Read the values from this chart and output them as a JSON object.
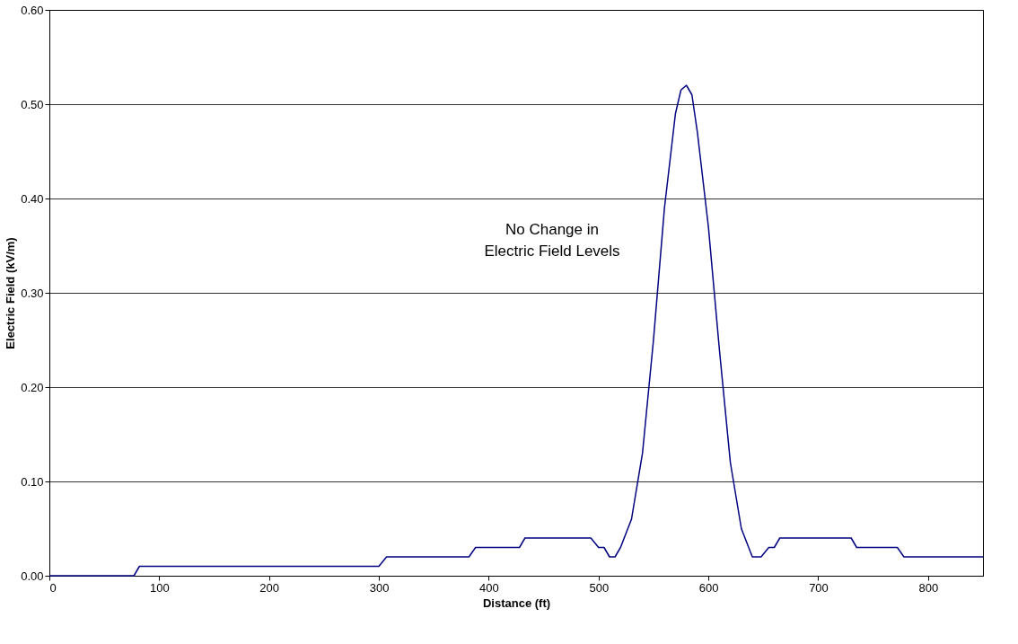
{
  "chart_data": {
    "type": "line",
    "xlabel": "Distance (ft)",
    "ylabel": "Electric Field (kV/m)",
    "xlim": [
      0,
      850
    ],
    "xticks": [
      0,
      100,
      200,
      300,
      400,
      500,
      600,
      700,
      800
    ],
    "ylim": [
      0,
      0.6
    ],
    "yticks": [
      {
        "value": 0,
        "label": "0.00"
      },
      {
        "value": 0.1,
        "label": "0.10"
      },
      {
        "value": 0.2,
        "label": "0.20"
      },
      {
        "value": 0.3,
        "label": "0.30"
      },
      {
        "value": 0.4,
        "label": "0.40"
      },
      {
        "value": 0.5,
        "label": "0.50"
      },
      {
        "value": 0.6,
        "label": "0.60"
      }
    ],
    "grid": "y",
    "legend": false,
    "marker": "none",
    "line_style": "solid",
    "annotations": [
      "No Change in\nElectric Field Levels"
    ],
    "series": [
      {
        "color": "#000080",
        "x": [
          0,
          77,
          82,
          300,
          307,
          382,
          388,
          428,
          433,
          493,
          500,
          505,
          510,
          515,
          520,
          530,
          540,
          550,
          560,
          570,
          575,
          580,
          585,
          590,
          600,
          610,
          620,
          630,
          640,
          648,
          655,
          660,
          665,
          730,
          735,
          772,
          778,
          850
        ],
        "values": [
          0,
          0,
          0.01,
          0.01,
          0.02,
          0.02,
          0.03,
          0.03,
          0.04,
          0.04,
          0.03,
          0.03,
          0.02,
          0.02,
          0.03,
          0.06,
          0.13,
          0.25,
          0.39,
          0.49,
          0.515,
          0.52,
          0.51,
          0.47,
          0.37,
          0.24,
          0.12,
          0.05,
          0.02,
          0.02,
          0.03,
          0.03,
          0.04,
          0.04,
          0.03,
          0.03,
          0.02,
          0.02
        ]
      }
    ]
  }
}
